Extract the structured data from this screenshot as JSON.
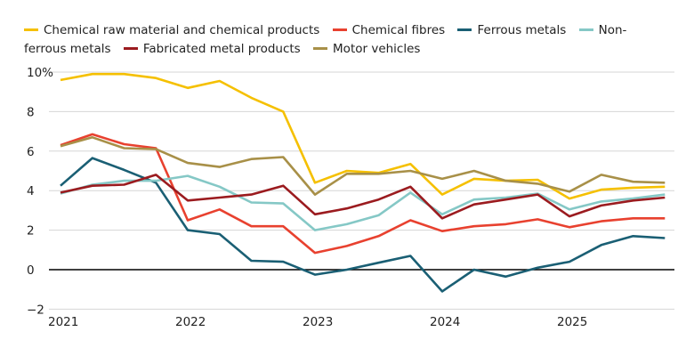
{
  "chart_data": {
    "type": "line",
    "title": "",
    "xlabel": "",
    "ylabel": "",
    "ylim": [
      -2,
      10
    ],
    "y_ticks": [
      "10%",
      "8",
      "6",
      "4",
      "2",
      "0",
      "−2"
    ],
    "y_tick_values": [
      10,
      8,
      6,
      4,
      2,
      0,
      -2
    ],
    "x_ticks": [
      "2021",
      "2022",
      "2023",
      "2024",
      "2025"
    ],
    "x": [
      "2021Q1",
      "2021Q2",
      "2021Q3",
      "2021Q4",
      "2022Q1",
      "2022Q2",
      "2022Q3",
      "2022Q4",
      "2023Q1",
      "2023Q2",
      "2023Q3",
      "2023Q4",
      "2024Q1",
      "2024Q2",
      "2024Q3",
      "2024Q4",
      "2025Q1",
      "2025Q2",
      "2025Q3",
      "2025Q4"
    ],
    "grid": true,
    "legend_placement": "top",
    "series": [
      {
        "name": "Chemical raw material and chemical products",
        "color": "#f5c000",
        "values": [
          9.6,
          9.9,
          9.9,
          9.7,
          9.2,
          9.55,
          8.7,
          8.0,
          4.4,
          5.0,
          4.9,
          5.35,
          3.8,
          4.6,
          4.5,
          4.55,
          3.6,
          4.05,
          4.15,
          4.2
        ]
      },
      {
        "name": "Chemical fibres",
        "color": "#e8412f",
        "values": [
          6.3,
          6.85,
          6.35,
          6.15,
          2.5,
          3.05,
          2.2,
          2.2,
          0.85,
          1.2,
          1.7,
          2.5,
          1.95,
          2.2,
          2.3,
          2.55,
          2.15,
          2.45,
          2.6,
          2.6
        ]
      },
      {
        "name": "Ferrous metals",
        "color": "#1a5f74",
        "values": [
          4.25,
          5.65,
          5.05,
          4.4,
          2.0,
          1.8,
          0.45,
          0.4,
          -0.25,
          0.0,
          0.35,
          0.7,
          -1.1,
          0.0,
          -0.35,
          0.1,
          0.4,
          1.25,
          1.7,
          1.6
        ]
      },
      {
        "name": "Non-ferrous metals",
        "color": "#85c8c6",
        "values": [
          3.85,
          4.3,
          4.5,
          4.5,
          4.75,
          4.2,
          3.4,
          3.35,
          2.0,
          2.3,
          2.75,
          3.9,
          2.8,
          3.55,
          3.65,
          3.85,
          3.05,
          3.45,
          3.6,
          3.8
        ]
      },
      {
        "name": "Fabricated metal products",
        "color": "#9b1b1f",
        "values": [
          3.9,
          4.25,
          4.3,
          4.8,
          3.5,
          3.65,
          3.8,
          4.25,
          2.8,
          3.1,
          3.55,
          4.2,
          2.6,
          3.3,
          3.55,
          3.8,
          2.7,
          3.25,
          3.5,
          3.65
        ]
      },
      {
        "name": "Motor vehicles",
        "color": "#a89048",
        "values": [
          6.25,
          6.7,
          6.15,
          6.1,
          5.4,
          5.2,
          5.6,
          5.7,
          3.8,
          4.85,
          4.85,
          5.0,
          4.6,
          5.0,
          4.5,
          4.35,
          3.95,
          4.8,
          4.45,
          4.4
        ]
      }
    ]
  }
}
